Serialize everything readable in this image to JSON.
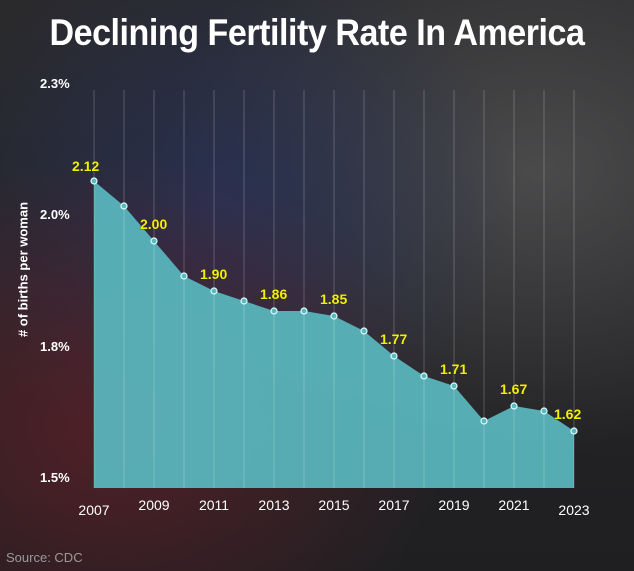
{
  "chart_data": {
    "type": "area",
    "title": "Declining Fertility Rate In America",
    "ylabel": "# of births per woman",
    "source": "Source: CDC",
    "y_tick_labels": [
      "2.3%",
      "2.0%",
      "1.8%",
      "1.5%"
    ],
    "x_tick_labels": [
      "2007",
      "2009",
      "2011",
      "2013",
      "2015",
      "2017",
      "2019",
      "2021",
      "2023"
    ],
    "x": [
      2007,
      2008,
      2009,
      2010,
      2011,
      2012,
      2013,
      2014,
      2015,
      2016,
      2017,
      2018,
      2019,
      2020,
      2021,
      2022,
      2023
    ],
    "values": [
      2.12,
      2.07,
      2.0,
      1.93,
      1.9,
      1.88,
      1.86,
      1.86,
      1.85,
      1.82,
      1.77,
      1.73,
      1.71,
      1.64,
      1.67,
      1.66,
      1.62
    ],
    "data_labels": {
      "2007": "2.12",
      "2009": "2.00",
      "2011": "1.90",
      "2013": "1.86",
      "2015": "1.85",
      "2017": "1.77",
      "2019": "1.71",
      "2021": "1.67",
      "2023": "1.62"
    },
    "colors": {
      "area": "#5ab8bf",
      "label": "#f4f000",
      "highlight_year": "#f4f000"
    },
    "grid": "vertical lines"
  }
}
